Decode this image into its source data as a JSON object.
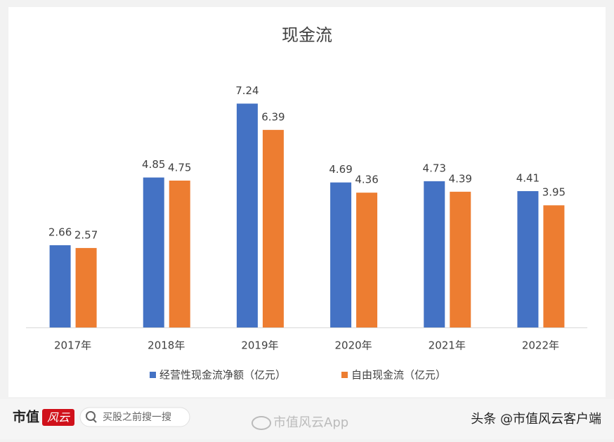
{
  "chart_data": {
    "type": "bar",
    "title": "现金流",
    "categories": [
      "2017年",
      "2018年",
      "2019年",
      "2020年",
      "2021年",
      "2022年"
    ],
    "series": [
      {
        "name": "经营性现金流净额（亿元）",
        "color": "#4472c4",
        "values": [
          2.66,
          4.85,
          7.24,
          4.69,
          4.73,
          4.41
        ]
      },
      {
        "name": "自由现金流（亿元）",
        "color": "#ed7d31",
        "values": [
          2.57,
          4.75,
          6.39,
          4.36,
          4.39,
          3.95
        ]
      }
    ],
    "ylim": [
      0,
      8
    ]
  },
  "footer": {
    "brand": "市值",
    "logo": "风云",
    "search": "买股之前搜一搜",
    "app": "市值风云App",
    "account": "头条 @市值风云客户端"
  }
}
